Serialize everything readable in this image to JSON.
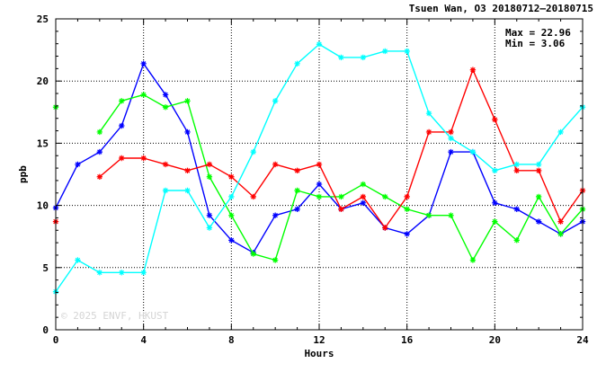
{
  "chart_data": {
    "type": "line",
    "title": "Tsuen Wan, O3 20180712–20180715",
    "xlabel": "Hours",
    "ylabel": "ppb",
    "xlim": [
      0,
      24
    ],
    "ylim": [
      0,
      25
    ],
    "xticks": [
      0,
      4,
      8,
      12,
      16,
      20,
      24
    ],
    "yticks": [
      0,
      5,
      10,
      15,
      20,
      25
    ],
    "grid": true,
    "annotations": {
      "max_text": "Max = 22.96",
      "min_text": "Min =  3.06"
    },
    "watermark": "© 2025  ENVF, HKUST",
    "x": [
      0,
      1,
      2,
      3,
      4,
      5,
      6,
      7,
      8,
      9,
      10,
      11,
      12,
      13,
      14,
      15,
      16,
      17,
      18,
      19,
      20,
      21,
      22,
      23,
      24
    ],
    "series": [
      {
        "color": "#0000ff",
        "values": [
          9.8,
          13.3,
          14.3,
          16.4,
          21.4,
          18.9,
          15.9,
          9.2,
          7.2,
          6.2,
          9.2,
          9.7,
          11.7,
          9.7,
          10.2,
          8.2,
          7.7,
          9.2,
          14.3,
          14.3,
          10.2,
          9.7,
          8.7,
          7.7,
          8.7
        ]
      },
      {
        "color": "#00ff00",
        "values": [
          17.9,
          null,
          15.9,
          18.4,
          18.9,
          17.9,
          18.4,
          12.3,
          9.2,
          6.1,
          5.6,
          11.2,
          10.7,
          10.7,
          11.7,
          10.7,
          9.7,
          9.2,
          9.2,
          5.6,
          8.7,
          7.2,
          10.7,
          7.7,
          9.7
        ]
      },
      {
        "color": "#ff0000",
        "values": [
          8.7,
          null,
          12.3,
          13.8,
          13.8,
          13.3,
          12.8,
          13.3,
          12.3,
          10.7,
          13.3,
          12.8,
          13.3,
          9.7,
          10.7,
          8.2,
          10.7,
          15.9,
          15.9,
          20.9,
          16.9,
          12.8,
          12.8,
          8.7,
          11.2
        ]
      },
      {
        "color": "#00ffff",
        "values": [
          3.06,
          5.6,
          4.6,
          4.6,
          4.6,
          11.2,
          11.2,
          8.2,
          10.7,
          14.3,
          18.4,
          21.4,
          22.96,
          21.9,
          21.9,
          22.4,
          22.4,
          17.4,
          15.4,
          14.3,
          12.8,
          13.3,
          13.3,
          15.9,
          17.9
        ]
      }
    ]
  }
}
